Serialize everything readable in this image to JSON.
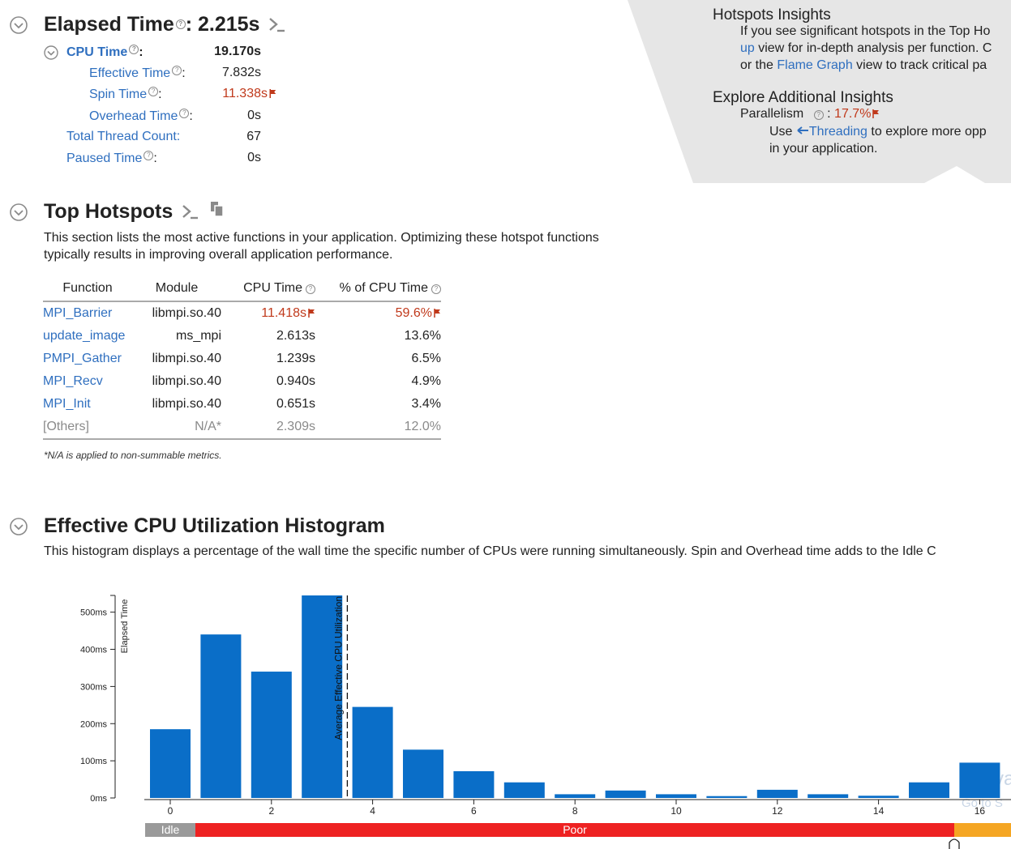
{
  "summary": {
    "elapsed_label": "Elapsed Time",
    "elapsed_value": ": 2.215s",
    "cpu_time_label": "CPU Time",
    "cpu_time_value": "19.170s",
    "effective_label": "Effective Time",
    "effective_value": "7.832s",
    "spin_label": "Spin Time",
    "spin_value": "11.338s",
    "overhead_label": "Overhead Time",
    "overhead_value": "0s",
    "thread_label": "Total Thread Count:",
    "thread_value": "67",
    "paused_label": "Paused Time",
    "paused_value": "0s"
  },
  "insights": {
    "title": "Hotspots Insights",
    "line1": "If you see significant hotspots in the Top Ho",
    "line2_link": "up",
    "line2_rest": " view for in-depth analysis per function. C",
    "line3_pre": "or the ",
    "line3_link": "Flame Graph",
    "line3_rest": " view to track critical pa",
    "explore_title": "Explore Additional Insights",
    "parallelism_label": "Parallelism",
    "parallelism_value": "17.7%",
    "use_pre": "Use ",
    "use_link": "Threading",
    "use_rest": " to explore more opp",
    "use_line2": "in your application."
  },
  "hotspots": {
    "title": "Top Hotspots",
    "desc1": "This section lists the most active functions in your application. Optimizing these hotspot functions",
    "desc2": "typically results in improving overall application performance.",
    "headers": [
      "Function",
      "Module",
      "CPU Time",
      "% of CPU Time"
    ],
    "rows": [
      {
        "function": "MPI_Barrier",
        "module": "libmpi.so.40",
        "cpu": "11.418s",
        "pct": "59.6%"
      },
      {
        "function": "update_image",
        "module": "ms_mpi",
        "cpu": "2.613s",
        "pct": "13.6%"
      },
      {
        "function": "PMPI_Gather",
        "module": "libmpi.so.40",
        "cpu": "1.239s",
        "pct": "6.5%"
      },
      {
        "function": "MPI_Recv",
        "module": "libmpi.so.40",
        "cpu": "0.940s",
        "pct": "4.9%"
      },
      {
        "function": "MPI_Init",
        "module": "libmpi.so.40",
        "cpu": "0.651s",
        "pct": "3.4%"
      },
      {
        "function": "[Others]",
        "module": "N/A*",
        "cpu": "2.309s",
        "pct": "12.0%"
      }
    ],
    "footnote": "*N/A is applied to non-summable metrics."
  },
  "histogram": {
    "title": "Effective CPU Utilization Histogram",
    "desc": "This histogram displays a percentage of the wall time the specific number of CPUs were running simultaneously. Spin and Overhead time adds to the Idle C",
    "watermark": "Activa",
    "watermark2": "Go to S",
    "bands": {
      "idle": "Idle",
      "poor": "Poor"
    }
  },
  "chart_data": {
    "type": "bar",
    "ylabel": "Elapsed Time",
    "avg_label": "Average Effective CPU Utilization",
    "avg_value": 3.5,
    "x": [
      0,
      1,
      2,
      3,
      4,
      5,
      6,
      7,
      8,
      9,
      10,
      11,
      12,
      13,
      14,
      15,
      16
    ],
    "values": [
      185,
      440,
      340,
      545,
      245,
      130,
      72,
      42,
      10,
      20,
      10,
      5,
      22,
      10,
      6,
      42,
      95
    ],
    "ylim": [
      0,
      545
    ],
    "yticks": [
      0,
      100,
      200,
      300,
      400,
      500
    ],
    "ytick_labels": [
      "0ms",
      "100ms",
      "200ms",
      "300ms",
      "400ms",
      "500ms"
    ],
    "xticks": [
      0,
      2,
      4,
      6,
      8,
      10,
      12,
      14,
      16
    ],
    "bar_color": "#0a6ec8"
  }
}
